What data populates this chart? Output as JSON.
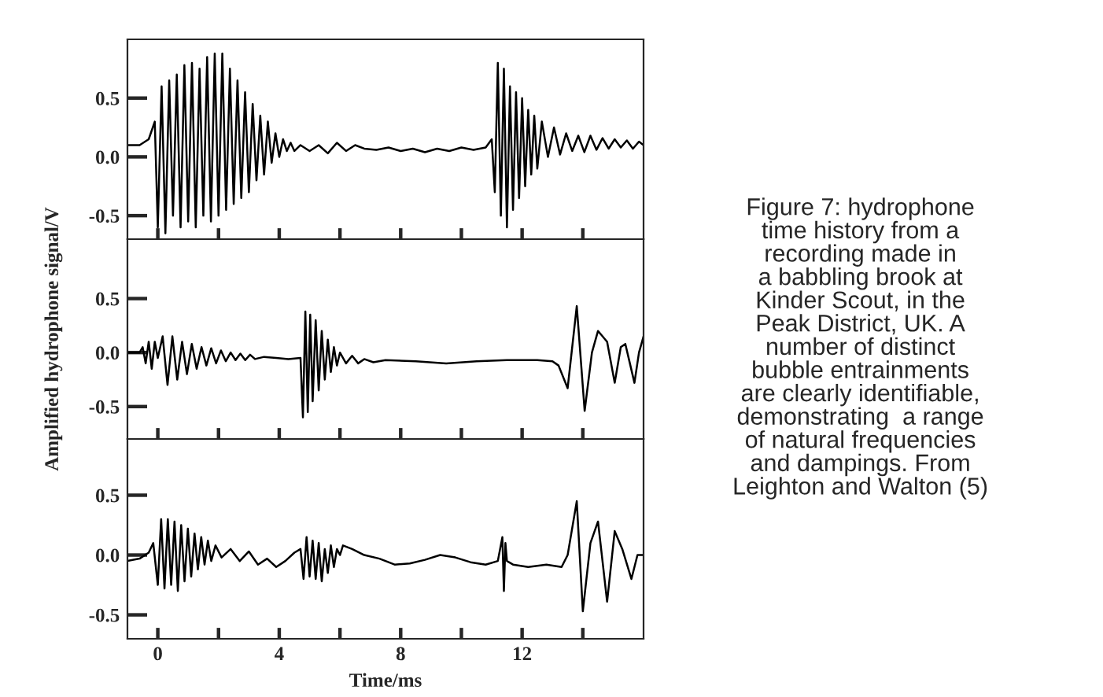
{
  "chart_data": [
    {
      "type": "line",
      "xlim": [
        -1,
        16
      ],
      "ylim": [
        -0.7,
        1.0
      ],
      "xticks": [
        {
          "value": 0,
          "label": null
        },
        {
          "value": 2,
          "label": null
        },
        {
          "value": 4,
          "label": null
        },
        {
          "value": 6,
          "label": null
        },
        {
          "value": 8,
          "label": null
        },
        {
          "value": 10,
          "label": null
        },
        {
          "value": 12,
          "label": null
        },
        {
          "value": 14,
          "label": null
        }
      ],
      "yticks": [
        {
          "value": 0.5,
          "label": "0.5"
        },
        {
          "value": 0,
          "label": "0.0"
        },
        {
          "value": -0.5,
          "label": "-0.5"
        }
      ],
      "tick_labels": "y",
      "grid": false,
      "legend": false,
      "marker": "none",
      "line_style": "solid",
      "annotations": [
        "Figure 7: hydrophone\ntime history from a\nrecording made in\na babbling brook at\nKinder Scout, in the\nPeak District, UK. A\nnumber of distinct\nbubble entrainments\nare clearly identifiable,\ndemonstrating  a range\nof natural frequencies\nand dampings. From\nLeighton and Walton (5)"
      ],
      "series": [
        {
          "color": "#000000",
          "x": [
            -1,
            -0.6,
            -0.3,
            -0.1,
            0,
            0.125,
            0.25,
            0.375,
            0.5,
            0.625,
            0.75,
            0.875,
            1.0,
            1.125,
            1.25,
            1.375,
            1.5,
            1.625,
            1.75,
            1.875,
            2.0,
            2.125,
            2.25,
            2.375,
            2.5,
            2.625,
            2.75,
            2.875,
            3.0,
            3.125,
            3.25,
            3.375,
            3.5,
            3.625,
            3.75,
            3.875,
            4.0,
            4.125,
            4.25,
            4.375,
            4.5,
            4.7,
            5.0,
            5.3,
            5.6,
            5.9,
            6.2,
            6.5,
            6.8,
            7.2,
            7.6,
            8.0,
            8.4,
            8.8,
            9.2,
            9.6,
            10.0,
            10.4,
            10.8,
            11.0,
            11.1,
            11.2,
            11.3,
            11.4,
            11.5,
            11.6,
            11.7,
            11.8,
            11.9,
            12.0,
            12.1,
            12.2,
            12.3,
            12.4,
            12.5,
            12.65,
            12.85,
            13.05,
            13.25,
            13.45,
            13.65,
            13.85,
            14.05,
            14.25,
            14.45,
            14.65,
            14.85,
            15.05,
            15.25,
            15.45,
            15.65,
            15.85,
            16.0
          ],
          "values": [
            0.1,
            0.1,
            0.15,
            0.3,
            -0.6,
            0.6,
            -0.65,
            0.65,
            -0.5,
            0.7,
            -0.6,
            0.78,
            -0.55,
            0.8,
            -0.6,
            0.75,
            -0.5,
            0.85,
            -0.55,
            0.88,
            -0.5,
            0.88,
            -0.45,
            0.75,
            -0.4,
            0.65,
            -0.35,
            0.55,
            -0.3,
            0.45,
            -0.2,
            0.35,
            -0.15,
            0.3,
            -0.05,
            0.2,
            0.0,
            0.15,
            0.05,
            0.12,
            0.05,
            0.1,
            0.05,
            0.1,
            0.03,
            0.12,
            0.05,
            0.1,
            0.07,
            0.06,
            0.08,
            0.05,
            0.07,
            0.04,
            0.07,
            0.05,
            0.08,
            0.06,
            0.08,
            0.15,
            -0.3,
            0.8,
            -0.5,
            0.75,
            -0.6,
            0.6,
            -0.45,
            0.55,
            -0.35,
            0.5,
            -0.25,
            0.4,
            -0.15,
            0.35,
            -0.1,
            0.3,
            0.0,
            0.25,
            0.02,
            0.2,
            0.05,
            0.18,
            0.04,
            0.18,
            0.06,
            0.16,
            0.07,
            0.15,
            0.08,
            0.14,
            0.07,
            0.13,
            0.1
          ]
        }
      ]
    },
    {
      "type": "line",
      "xlim": [
        -1,
        16
      ],
      "ylim": [
        -0.8,
        1.05
      ],
      "xticks": [
        {
          "value": 0,
          "label": null
        },
        {
          "value": 2,
          "label": null
        },
        {
          "value": 4,
          "label": null
        },
        {
          "value": 6,
          "label": null
        },
        {
          "value": 8,
          "label": null
        },
        {
          "value": 10,
          "label": null
        },
        {
          "value": 12,
          "label": null
        },
        {
          "value": 14,
          "label": null
        }
      ],
      "yticks": [
        {
          "value": 0.5,
          "label": "0.5"
        },
        {
          "value": 0,
          "label": "0.0"
        },
        {
          "value": -0.5,
          "label": "-0.5"
        }
      ],
      "tick_labels": "y",
      "grid": false,
      "legend": false,
      "marker": "none",
      "line_style": "solid",
      "ylabel": "Amplified hydrophone signal/V",
      "series": [
        {
          "color": "#000000",
          "x": [
            -1,
            -0.6,
            -0.5,
            -0.4,
            -0.3,
            -0.2,
            -0.1,
            0,
            0.16,
            0.32,
            0.48,
            0.64,
            0.8,
            0.96,
            1.12,
            1.28,
            1.44,
            1.6,
            1.76,
            1.92,
            2.08,
            2.24,
            2.4,
            2.56,
            2.72,
            2.88,
            3.04,
            3.2,
            3.5,
            3.9,
            4.3,
            4.7,
            4.78,
            4.86,
            4.94,
            5.02,
            5.1,
            5.2,
            5.3,
            5.4,
            5.5,
            5.6,
            5.7,
            5.8,
            5.9,
            6.0,
            6.2,
            6.4,
            6.6,
            6.8,
            7.1,
            7.5,
            8.5,
            9.5,
            10.5,
            11.5,
            12.5,
            13.0,
            13.2,
            13.5,
            13.8,
            14.06,
            14.3,
            14.5,
            14.8,
            15.05,
            15.25,
            15.4,
            15.55,
            15.7,
            15.85,
            16.0
          ],
          "values": [
            0.0,
            0.0,
            0.05,
            -0.1,
            0.1,
            -0.15,
            0.1,
            -0.05,
            0.15,
            -0.3,
            0.15,
            -0.25,
            0.1,
            -0.2,
            0.08,
            -0.15,
            0.05,
            -0.12,
            0.04,
            -0.1,
            0.02,
            -0.08,
            0.0,
            -0.07,
            -0.01,
            -0.07,
            -0.02,
            -0.06,
            -0.04,
            -0.05,
            -0.06,
            -0.05,
            -0.6,
            0.38,
            -0.55,
            0.35,
            -0.45,
            0.3,
            -0.35,
            0.2,
            -0.25,
            0.12,
            -0.18,
            0.05,
            -0.12,
            0.0,
            -0.1,
            -0.03,
            -0.1,
            -0.06,
            -0.09,
            -0.07,
            -0.08,
            -0.1,
            -0.08,
            -0.07,
            -0.07,
            -0.08,
            -0.12,
            -0.33,
            0.43,
            -0.54,
            0.0,
            0.2,
            0.1,
            -0.28,
            0.05,
            0.08,
            -0.1,
            -0.28,
            0.0,
            0.15
          ]
        }
      ]
    },
    {
      "type": "line",
      "xlim": [
        -1,
        16
      ],
      "ylim": [
        -0.7,
        0.97
      ],
      "xticks": [
        {
          "value": 0,
          "label": "0"
        },
        {
          "value": 2,
          "label": null
        },
        {
          "value": 4,
          "label": "4"
        },
        {
          "value": 6,
          "label": null
        },
        {
          "value": 8,
          "label": "8"
        },
        {
          "value": 10,
          "label": null
        },
        {
          "value": 12,
          "label": "12"
        },
        {
          "value": 14,
          "label": null
        }
      ],
      "yticks": [
        {
          "value": 0.5,
          "label": "0.5"
        },
        {
          "value": 0,
          "label": "0.0"
        },
        {
          "value": -0.5,
          "label": "-0.5"
        }
      ],
      "grid": false,
      "legend": false,
      "marker": "none",
      "line_style": "solid",
      "xlabel": "Time/ms",
      "series": [
        {
          "color": "#000000",
          "x": [
            -1,
            -0.6,
            -0.3,
            -0.15,
            0,
            0.11,
            0.22,
            0.33,
            0.44,
            0.55,
            0.66,
            0.77,
            0.88,
            0.99,
            1.1,
            1.21,
            1.32,
            1.43,
            1.54,
            1.65,
            1.76,
            1.9,
            2.1,
            2.4,
            2.7,
            3.0,
            3.3,
            3.6,
            3.9,
            4.2,
            4.5,
            4.7,
            4.8,
            4.9,
            5.0,
            5.1,
            5.2,
            5.3,
            5.4,
            5.5,
            5.6,
            5.7,
            5.8,
            5.9,
            6.0,
            6.1,
            6.4,
            6.8,
            7.3,
            7.8,
            8.3,
            8.8,
            9.3,
            9.8,
            10.3,
            10.8,
            11.2,
            11.35,
            11.4,
            11.45,
            11.5,
            11.7,
            12.2,
            12.8,
            13.3,
            13.5,
            13.8,
            14.0,
            14.25,
            14.5,
            14.8,
            15.05,
            15.3,
            15.6,
            15.8,
            16.0
          ],
          "values": [
            -0.05,
            -0.03,
            0.02,
            0.1,
            -0.25,
            0.3,
            -0.28,
            0.3,
            -0.25,
            0.28,
            -0.3,
            0.25,
            -0.22,
            0.22,
            -0.18,
            0.18,
            -0.12,
            0.15,
            -0.08,
            0.12,
            -0.05,
            0.08,
            -0.02,
            0.05,
            -0.05,
            0.03,
            -0.08,
            -0.03,
            -0.1,
            -0.05,
            0.02,
            0.05,
            -0.2,
            0.15,
            -0.18,
            0.12,
            -0.2,
            0.1,
            -0.22,
            0.05,
            -0.15,
            0.08,
            -0.1,
            0.05,
            0.0,
            0.08,
            0.05,
            0.0,
            -0.03,
            -0.08,
            -0.07,
            -0.04,
            0.0,
            -0.02,
            -0.06,
            -0.08,
            -0.05,
            0.15,
            -0.3,
            0.1,
            -0.05,
            -0.08,
            -0.1,
            -0.08,
            -0.1,
            0.0,
            0.45,
            -0.47,
            0.1,
            0.28,
            -0.39,
            0.2,
            0.05,
            -0.2,
            0.0,
            0.0
          ]
        }
      ]
    }
  ]
}
